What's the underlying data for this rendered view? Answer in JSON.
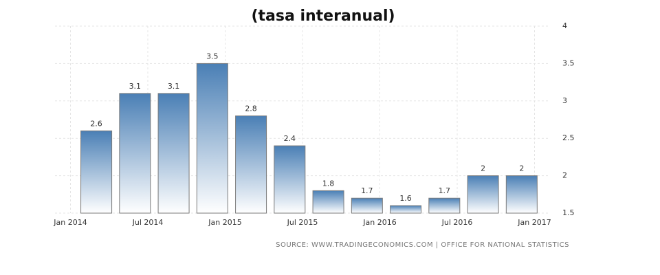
{
  "chart_data": {
    "type": "bar",
    "title": "(tasa interanual)",
    "source": "SOURCE: WWW.TRADINGECONOMICS.COM | OFFICE FOR NATIONAL STATISTICS",
    "x": [
      2014.167,
      2014.417,
      2014.667,
      2014.917,
      2015.167,
      2015.417,
      2015.667,
      2015.917,
      2016.167,
      2016.417,
      2016.667,
      2016.917
    ],
    "values": [
      2.6,
      3.1,
      3.1,
      3.5,
      2.8,
      2.4,
      1.8,
      1.7,
      1.6,
      1.7,
      2,
      2
    ],
    "color": "#4a7fb5",
    "xlim": [
      2013.9,
      2017.1
    ],
    "xticks": [
      {
        "value": 2014,
        "label": "Jan 2014"
      },
      {
        "value": 2014.5,
        "label": "Jul 2014"
      },
      {
        "value": 2015,
        "label": "Jan 2015"
      },
      {
        "value": 2015.5,
        "label": "Jul 2015"
      },
      {
        "value": 2016,
        "label": "Jan 2016"
      },
      {
        "value": 2016.5,
        "label": "Jul 2016"
      },
      {
        "value": 2017,
        "label": "Jan 2017"
      }
    ],
    "ylim": [
      1.5,
      4
    ],
    "yticks": [
      1.5,
      2,
      2.5,
      3,
      3.5,
      4
    ],
    "grid": true
  }
}
